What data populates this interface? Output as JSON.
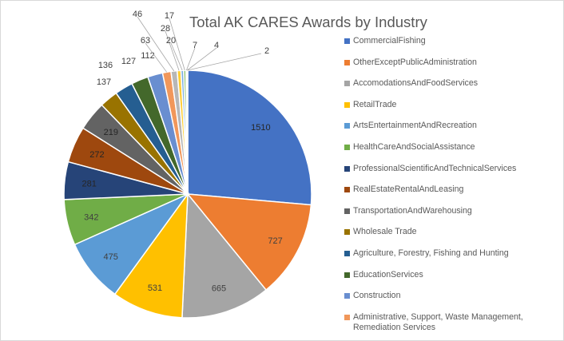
{
  "chart_data": {
    "type": "pie",
    "title": "Total AK CARES Awards by Industry",
    "legend_position": "right",
    "slices": [
      {
        "name": "CommercialFishing",
        "value": 1510,
        "color": "#4472c4"
      },
      {
        "name": "OtherExceptPublicAdministration",
        "value": 727,
        "color": "#ed7d31"
      },
      {
        "name": "AccomodationsAndFoodServices",
        "value": 665,
        "color": "#a5a5a5"
      },
      {
        "name": "RetailTrade",
        "value": 531,
        "color": "#ffc000"
      },
      {
        "name": "ArtsEntertainmentAndRecreation",
        "value": 475,
        "color": "#5b9bd5"
      },
      {
        "name": "HealthCareAndSocialAssistance",
        "value": 342,
        "color": "#70ad47"
      },
      {
        "name": "ProfessionalScientificAndTechnicalServices",
        "value": 281,
        "color": "#264478"
      },
      {
        "name": "RealEstateRentalAndLeasing",
        "value": 272,
        "color": "#9e480e"
      },
      {
        "name": "TransportationAndWarehousing",
        "value": 219,
        "color": "#636363"
      },
      {
        "name": "Wholesale Trade",
        "value": 137,
        "color": "#997300"
      },
      {
        "name": "Agriculture, Forestry, Fishing and Hunting",
        "value": 136,
        "color": "#255e91"
      },
      {
        "name": "EducationServices",
        "value": 127,
        "color": "#43682b"
      },
      {
        "name": "Construction",
        "value": 112,
        "color": "#698ed0"
      },
      {
        "name": "Administrative, Support, Waste Management, Remediation Services",
        "value": 63,
        "color": "#f1975a"
      },
      {
        "name": "",
        "value": 46,
        "color": "#b7b7b7"
      },
      {
        "name": "",
        "value": 28,
        "color": "#ffcd33"
      },
      {
        "name": "",
        "value": 20,
        "color": "#7cafdd"
      },
      {
        "name": "",
        "value": 17,
        "color": "#8cc168"
      },
      {
        "name": "",
        "value": 7,
        "color": "#335aa1"
      },
      {
        "name": "",
        "value": 4,
        "color": "#d26012"
      },
      {
        "name": "",
        "value": 2,
        "color": "#848484"
      }
    ]
  }
}
